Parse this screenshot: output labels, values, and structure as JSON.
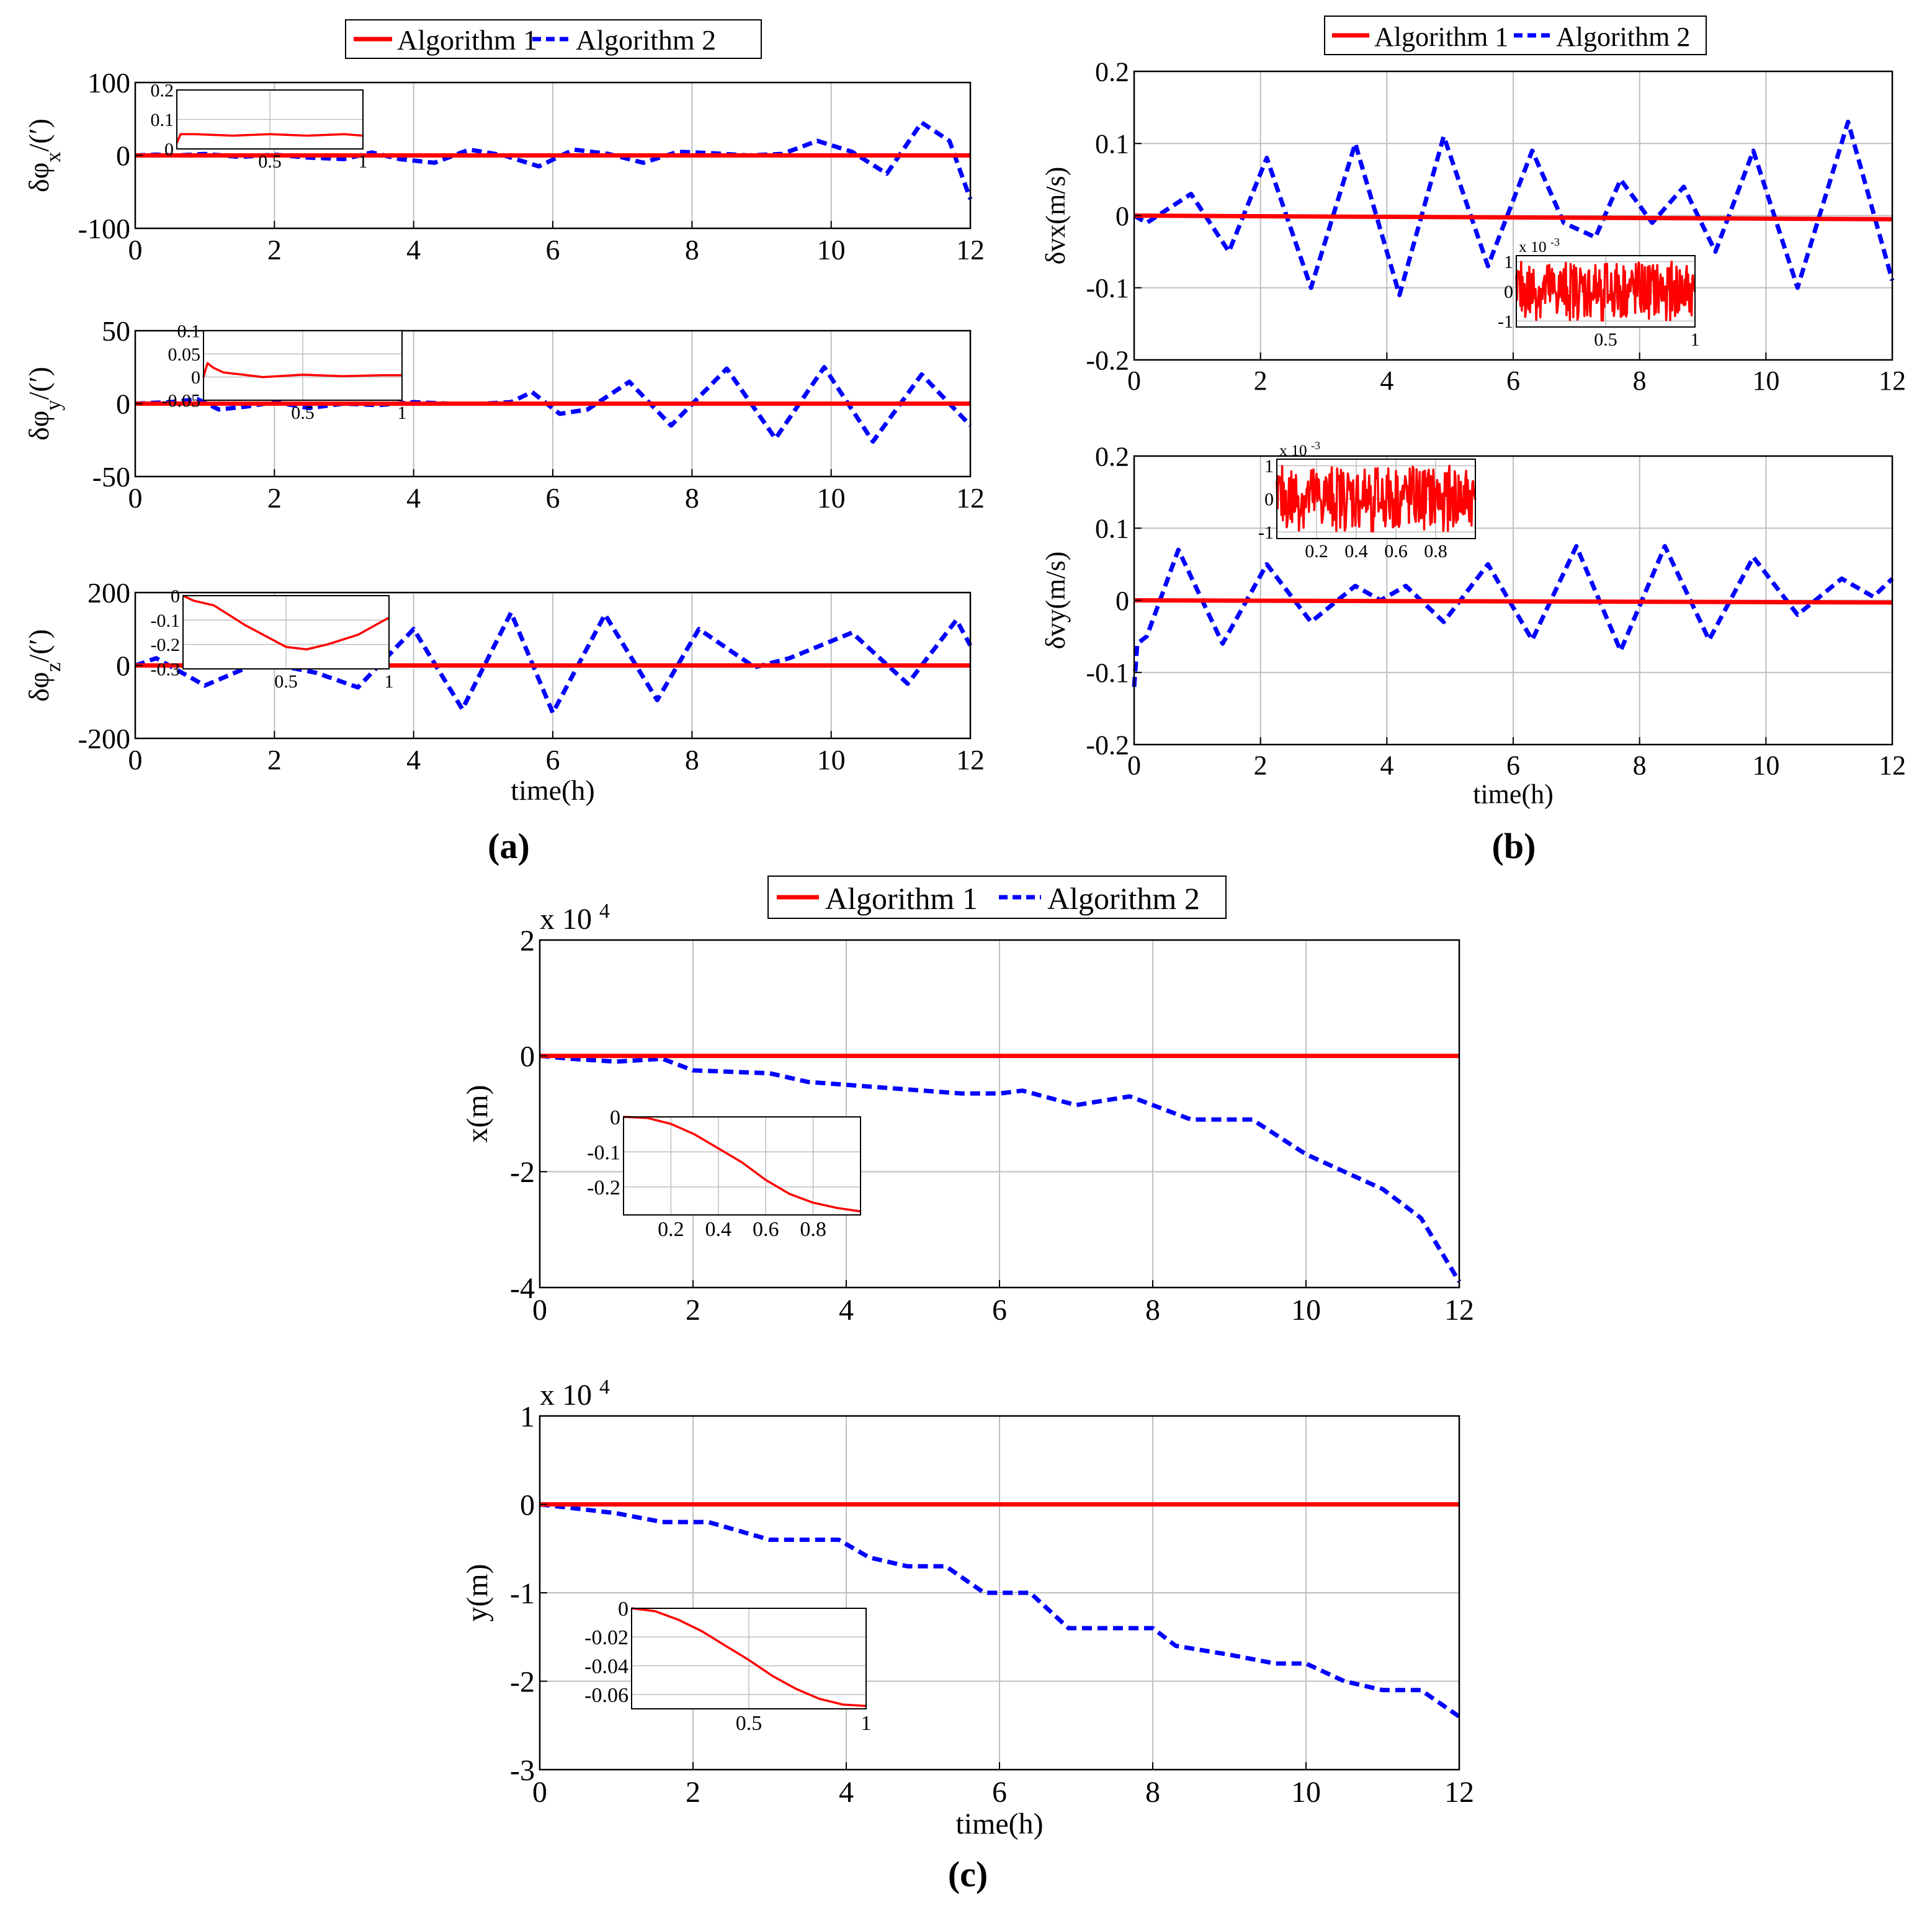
{
  "colors": {
    "algorithm1": "#ff0000",
    "algorithm2": "#0000ff",
    "grid": "#bfbfbf",
    "axis": "#000000"
  },
  "legend": {
    "algorithm1": "Algorithm 1",
    "algorithm2": "Algorithm 2"
  },
  "captions": {
    "a": "(a)",
    "b": "(b)",
    "c": "(c)"
  },
  "chart_data": [
    {
      "id": "phix",
      "panel": "a",
      "type": "line",
      "ylabel": "δφx/(′)",
      "ylabel_main": "δφ",
      "ylabel_sub": "x",
      "ylabel_tail": "/(′)",
      "xlabel": "",
      "xlim": [
        0,
        12
      ],
      "ylim": [
        -100,
        100
      ],
      "xticks": [
        0,
        2,
        4,
        6,
        8,
        10,
        12
      ],
      "yticks": [
        -100,
        0,
        100
      ],
      "series": [
        {
          "name": "Algorithm 1",
          "style": "solid",
          "x": [
            0,
            12
          ],
          "y": [
            0,
            0
          ]
        },
        {
          "name": "Algorithm 2",
          "style": "dashed",
          "x": [
            0,
            0.3,
            0.6,
            1,
            1.5,
            2,
            2.5,
            3,
            3.4,
            3.8,
            4.3,
            4.8,
            5.3,
            5.8,
            6.3,
            6.8,
            7.3,
            7.8,
            8.3,
            8.8,
            9.3,
            9.8,
            10.3,
            10.8,
            11.3,
            11.7,
            12
          ],
          "y": [
            0,
            1,
            0,
            2,
            -2,
            1,
            -3,
            -5,
            4,
            -5,
            -10,
            8,
            0,
            -15,
            8,
            2,
            -10,
            5,
            3,
            0,
            2,
            20,
            5,
            -25,
            45,
            20,
            -60
          ]
        }
      ],
      "inset": {
        "xlim": [
          0,
          1
        ],
        "ylim": [
          0,
          0.2
        ],
        "xticks": [
          0.5,
          1
        ],
        "yticks": [
          0,
          0.1,
          0.2
        ],
        "series": [
          {
            "name": "Algorithm 1",
            "x": [
              0,
              0.02,
              0.1,
              0.3,
              0.5,
              0.7,
              0.9,
              1
            ],
            "y": [
              0.02,
              0.05,
              0.05,
              0.045,
              0.05,
              0.045,
              0.05,
              0.045
            ]
          }
        ]
      }
    },
    {
      "id": "phiy",
      "panel": "a",
      "type": "line",
      "ylabel": "δφy/(′)",
      "ylabel_main": "δφ",
      "ylabel_sub": "y",
      "ylabel_tail": "/(′)",
      "xlabel": "",
      "xlim": [
        0,
        12
      ],
      "ylim": [
        -50,
        50
      ],
      "xticks": [
        0,
        2,
        4,
        6,
        8,
        10,
        12
      ],
      "yticks": [
        -50,
        0,
        50
      ],
      "series": [
        {
          "name": "Algorithm 1",
          "style": "solid",
          "x": [
            0,
            12
          ],
          "y": [
            0,
            0
          ]
        },
        {
          "name": "Algorithm 2",
          "style": "dashed",
          "x": [
            0,
            0.5,
            0.9,
            1.2,
            1.6,
            2,
            2.5,
            3,
            3.5,
            4,
            4.5,
            5,
            5.4,
            5.7,
            6.1,
            6.5,
            7.1,
            7.7,
            8.5,
            9.2,
            9.9,
            10.6,
            11.3,
            12
          ],
          "y": [
            0,
            1,
            3,
            -4,
            -2,
            1,
            -3,
            0,
            -1,
            1,
            0,
            0,
            1,
            8,
            -7,
            -4,
            15,
            -15,
            24,
            -24,
            25,
            -26,
            20,
            -15
          ]
        }
      ],
      "inset": {
        "xlim": [
          0,
          1
        ],
        "ylim": [
          -0.05,
          0.1
        ],
        "xticks": [
          0.5,
          1
        ],
        "yticks": [
          -0.05,
          0,
          0.05,
          0.1
        ],
        "series": [
          {
            "name": "Algorithm 1",
            "x": [
              0,
              0.02,
              0.05,
              0.1,
              0.2,
              0.3,
              0.5,
              0.7,
              0.9,
              1
            ],
            "y": [
              0,
              0.03,
              0.02,
              0.01,
              0.005,
              0.0,
              0.005,
              0.002,
              0.004,
              0.004
            ]
          }
        ]
      }
    },
    {
      "id": "phiz",
      "panel": "a",
      "type": "line",
      "ylabel": "δφz/(′)",
      "ylabel_main": "δφ",
      "ylabel_sub": "z",
      "ylabel_tail": "/(′)",
      "xlabel": "time(h)",
      "xlim": [
        0,
        12
      ],
      "ylim": [
        -200,
        200
      ],
      "xticks": [
        0,
        2,
        4,
        6,
        8,
        10,
        12
      ],
      "yticks": [
        -200,
        0,
        200
      ],
      "series": [
        {
          "name": "Algorithm 1",
          "style": "solid",
          "x": [
            0,
            12
          ],
          "y": [
            0,
            0
          ]
        },
        {
          "name": "Algorithm 2",
          "style": "dashed",
          "x": [
            0,
            0.3,
            1,
            1.8,
            2.6,
            3.2,
            4,
            4.7,
            5.4,
            6,
            6.75,
            7.5,
            8.1,
            8.9,
            9.4,
            10.3,
            11.1,
            11.8,
            12
          ],
          "y": [
            0,
            20,
            -55,
            10,
            -20,
            -60,
            100,
            -120,
            145,
            -130,
            140,
            -95,
            100,
            -5,
            20,
            90,
            -50,
            125,
            55
          ]
        }
      ],
      "inset": {
        "xlim": [
          0,
          1
        ],
        "ylim": [
          -0.3,
          0
        ],
        "xticks": [
          0.5,
          1
        ],
        "yticks": [
          -0.3,
          -0.2,
          -0.1,
          0
        ],
        "series": [
          {
            "name": "Algorithm 1",
            "x": [
              0,
              0.05,
              0.15,
              0.3,
              0.5,
              0.6,
              0.7,
              0.85,
              1
            ],
            "y": [
              0,
              -0.02,
              -0.04,
              -0.12,
              -0.21,
              -0.22,
              -0.2,
              -0.16,
              -0.09
            ]
          }
        ]
      }
    },
    {
      "id": "vx",
      "panel": "b",
      "type": "line",
      "ylabel": "δvx(m/s)",
      "xlabel": "",
      "xlim": [
        0,
        12
      ],
      "ylim": [
        -0.2,
        0.2
      ],
      "xticks": [
        0,
        2,
        4,
        6,
        8,
        10,
        12
      ],
      "yticks": [
        -0.2,
        -0.1,
        0,
        0.1,
        0.2
      ],
      "series": [
        {
          "name": "Algorithm 1",
          "style": "solid",
          "x": [
            0,
            12
          ],
          "y": [
            0,
            -0.005
          ]
        },
        {
          "name": "Algorithm 2",
          "style": "dashed",
          "x": [
            0,
            0.2,
            0.9,
            1.5,
            2.1,
            2.8,
            3.5,
            4.2,
            4.9,
            5.6,
            6.3,
            6.8,
            7.3,
            7.7,
            8.2,
            8.7,
            9.2,
            9.8,
            10.5,
            11.3,
            12
          ],
          "y": [
            0,
            -0.01,
            0.03,
            -0.05,
            0.08,
            -0.1,
            0.1,
            -0.11,
            0.11,
            -0.07,
            0.09,
            -0.01,
            -0.03,
            0.05,
            -0.01,
            0.04,
            -0.05,
            0.09,
            -0.1,
            0.13,
            -0.09
          ]
        }
      ],
      "inset": {
        "xlim": [
          0,
          1
        ],
        "ylim": [
          -1.2,
          1.2
        ],
        "xticks": [
          0.5,
          1
        ],
        "yticks": [
          -1,
          0,
          1
        ],
        "exponent": "x 10",
        "exponent_power": "-3",
        "series": [
          {
            "name": "Algorithm 1",
            "noise": true,
            "amplitude": 1.0
          }
        ]
      }
    },
    {
      "id": "vy",
      "panel": "b",
      "type": "line",
      "ylabel": "δvy(m/s)",
      "xlabel": "time(h)",
      "xlim": [
        0,
        12
      ],
      "ylim": [
        -0.2,
        0.2
      ],
      "xticks": [
        0,
        2,
        4,
        6,
        8,
        10,
        12
      ],
      "yticks": [
        -0.2,
        -0.1,
        0,
        0.1,
        0.2
      ],
      "series": [
        {
          "name": "Algorithm 1",
          "style": "solid",
          "x": [
            0,
            12
          ],
          "y": [
            0,
            -0.003
          ]
        },
        {
          "name": "Algorithm 2",
          "style": "dashed",
          "x": [
            0,
            0.05,
            0.2,
            0.7,
            1.4,
            2.1,
            2.8,
            3.5,
            3.9,
            4.3,
            4.9,
            5.6,
            6.3,
            7.0,
            7.7,
            8.4,
            9.1,
            9.8,
            10.5,
            11.2,
            11.7,
            12
          ],
          "y": [
            -0.12,
            -0.06,
            -0.05,
            0.07,
            -0.06,
            0.05,
            -0.03,
            0.02,
            0.0,
            0.02,
            -0.03,
            0.05,
            -0.055,
            0.075,
            -0.07,
            0.075,
            -0.055,
            0.06,
            -0.02,
            0.03,
            0.005,
            0.03
          ]
        }
      ],
      "inset": {
        "xlim": [
          0,
          1
        ],
        "ylim": [
          -1.2,
          1.2
        ],
        "xticks": [
          0.2,
          0.4,
          0.6,
          0.8
        ],
        "yticks": [
          -1,
          0,
          1
        ],
        "exponent": "x 10",
        "exponent_power": "-3",
        "series": [
          {
            "name": "Algorithm 1",
            "noise": true,
            "amplitude": 1.0
          }
        ]
      }
    },
    {
      "id": "x",
      "panel": "c",
      "type": "line",
      "ylabel": "x(m)",
      "xlabel": "",
      "xlim": [
        0,
        12
      ],
      "ylim": [
        -4,
        2
      ],
      "exponent": "x 10",
      "exponent_power": "4",
      "xticks": [
        0,
        2,
        4,
        6,
        8,
        10,
        12
      ],
      "yticks": [
        -4,
        -2,
        0,
        2
      ],
      "series": [
        {
          "name": "Algorithm 1",
          "style": "solid",
          "x": [
            0,
            12
          ],
          "y": [
            0,
            0
          ]
        },
        {
          "name": "Algorithm 2",
          "style": "dashed",
          "x": [
            0,
            0.4,
            1,
            1.6,
            2,
            3,
            3.5,
            4,
            4.5,
            5,
            5.5,
            6,
            6.3,
            7,
            7.7,
            8.5,
            9.3,
            10,
            11,
            11.5,
            12
          ],
          "y": [
            0,
            -0.05,
            -0.1,
            -0.05,
            -0.25,
            -0.3,
            -0.45,
            -0.5,
            -0.55,
            -0.6,
            -0.65,
            -0.65,
            -0.6,
            -0.85,
            -0.7,
            -1.1,
            -1.1,
            -1.7,
            -2.3,
            -2.8,
            -3.9
          ]
        }
      ],
      "inset": {
        "xlim": [
          0,
          1
        ],
        "ylim": [
          -0.28,
          0
        ],
        "xticks": [
          0.2,
          0.4,
          0.6,
          0.8
        ],
        "yticks": [
          -0.2,
          -0.1,
          0
        ],
        "series": [
          {
            "name": "Algorithm 1",
            "x": [
              0,
              0.1,
              0.2,
              0.3,
              0.4,
              0.5,
              0.6,
              0.7,
              0.8,
              0.9,
              1
            ],
            "y": [
              0,
              -0.003,
              -0.02,
              -0.05,
              -0.09,
              -0.13,
              -0.18,
              -0.22,
              -0.245,
              -0.26,
              -0.27
            ]
          }
        ]
      }
    },
    {
      "id": "y",
      "panel": "c",
      "type": "line",
      "ylabel": "y(m)",
      "xlabel": "time(h)",
      "xlim": [
        0,
        12
      ],
      "ylim": [
        -3,
        1
      ],
      "exponent": "x 10",
      "exponent_power": "4",
      "xticks": [
        0,
        2,
        4,
        6,
        8,
        10,
        12
      ],
      "yticks": [
        -3,
        -2,
        -1,
        0,
        1
      ],
      "series": [
        {
          "name": "Algorithm 1",
          "style": "solid",
          "x": [
            0,
            12
          ],
          "y": [
            0,
            0
          ]
        },
        {
          "name": "Algorithm 2",
          "style": "dashed",
          "x": [
            0,
            0.5,
            1,
            1.6,
            2.2,
            3,
            3.4,
            3.9,
            4.3,
            4.8,
            5.3,
            5.8,
            6.4,
            6.9,
            7.6,
            8,
            8.3,
            9,
            9.6,
            10,
            10.5,
            11,
            11.5,
            12
          ],
          "y": [
            0,
            -0.05,
            -0.1,
            -0.2,
            -0.2,
            -0.4,
            -0.4,
            -0.4,
            -0.6,
            -0.7,
            -0.7,
            -1.0,
            -1.0,
            -1.4,
            -1.4,
            -1.4,
            -1.6,
            -1.7,
            -1.8,
            -1.8,
            -2.0,
            -2.1,
            -2.1,
            -2.4
          ]
        }
      ],
      "inset": {
        "xlim": [
          0,
          1
        ],
        "ylim": [
          -0.07,
          0
        ],
        "xticks": [
          0.5,
          1
        ],
        "yticks": [
          -0.06,
          -0.04,
          -0.02,
          0
        ],
        "series": [
          {
            "name": "Algorithm 1",
            "x": [
              0,
              0.1,
              0.2,
              0.3,
              0.4,
              0.5,
              0.6,
              0.7,
              0.8,
              0.9,
              1
            ],
            "y": [
              0,
              -0.002,
              -0.008,
              -0.016,
              -0.026,
              -0.036,
              -0.047,
              -0.056,
              -0.063,
              -0.067,
              -0.068
            ]
          }
        ]
      }
    }
  ]
}
